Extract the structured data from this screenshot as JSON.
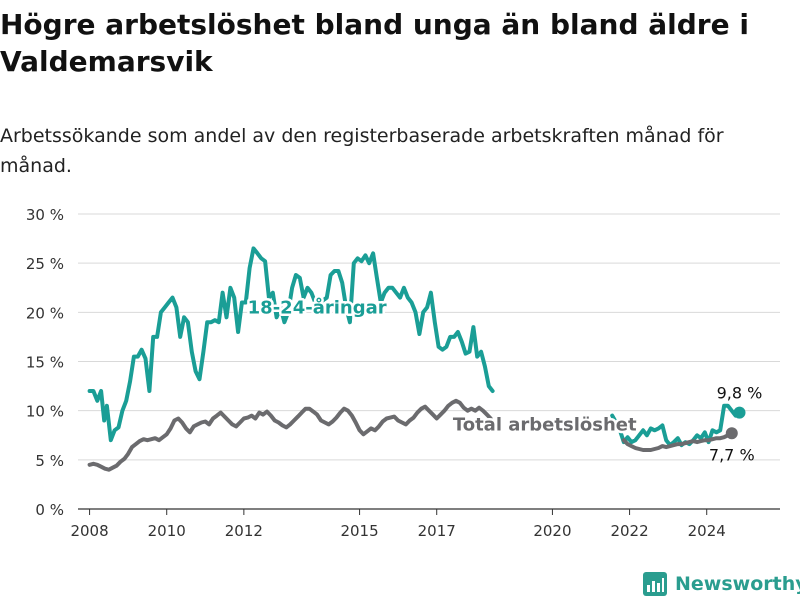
{
  "chart_data": {
    "type": "line",
    "title": "Högre arbetslöshet bland unga än bland äldre i Valdemarsvik",
    "subtitle": "Arbetssökande som andel av den registerbaserade arbetskraften månad för månad.",
    "xlabel": "",
    "ylabel": "",
    "x_ticks": [
      "2008",
      "2010",
      "2012",
      "2015",
      "2017",
      "2020",
      "2022",
      "2024"
    ],
    "x_tick_values": [
      2008,
      2010,
      2012,
      2015,
      2017,
      2020,
      2022,
      2024
    ],
    "y_ticks": [
      "0 %",
      "5 %",
      "10 %",
      "15 %",
      "20 %",
      "25 %",
      "30 %"
    ],
    "y_tick_values": [
      0,
      5,
      10,
      15,
      20,
      25,
      30
    ],
    "ylim": [
      0,
      30
    ],
    "xlim": [
      2007.7,
      2025.9
    ],
    "grid": "horizontal",
    "legend": "inline labels",
    "series": [
      {
        "name": "18-24-åringar",
        "color": "#1a9e96",
        "gap": [
          2018.45,
          2021.55
        ],
        "points": [
          [
            2008.0,
            12.0
          ],
          [
            2008.1,
            12.0
          ],
          [
            2008.2,
            11.0
          ],
          [
            2008.3,
            12.0
          ],
          [
            2008.38,
            9.0
          ],
          [
            2008.45,
            10.5
          ],
          [
            2008.55,
            7.0
          ],
          [
            2008.65,
            8.0
          ],
          [
            2008.75,
            8.3
          ],
          [
            2008.85,
            10.0
          ],
          [
            2008.95,
            11.0
          ],
          [
            2009.05,
            13.0
          ],
          [
            2009.15,
            15.5
          ],
          [
            2009.25,
            15.5
          ],
          [
            2009.35,
            16.2
          ],
          [
            2009.45,
            15.3
          ],
          [
            2009.55,
            12.0
          ],
          [
            2009.65,
            17.5
          ],
          [
            2009.75,
            17.5
          ],
          [
            2009.85,
            20.0
          ],
          [
            2009.95,
            20.5
          ],
          [
            2010.05,
            21.0
          ],
          [
            2010.15,
            21.5
          ],
          [
            2010.25,
            20.5
          ],
          [
            2010.35,
            17.5
          ],
          [
            2010.45,
            19.5
          ],
          [
            2010.55,
            19.0
          ],
          [
            2010.65,
            16.0
          ],
          [
            2010.75,
            14.0
          ],
          [
            2010.85,
            13.2
          ],
          [
            2010.95,
            16.0
          ],
          [
            2011.05,
            19.0
          ],
          [
            2011.15,
            19.0
          ],
          [
            2011.25,
            19.2
          ],
          [
            2011.35,
            19.0
          ],
          [
            2011.45,
            22.0
          ],
          [
            2011.55,
            19.5
          ],
          [
            2011.65,
            22.5
          ],
          [
            2011.75,
            21.5
          ],
          [
            2011.85,
            18.0
          ],
          [
            2011.95,
            21.0
          ],
          [
            2012.05,
            21.0
          ],
          [
            2012.15,
            24.5
          ],
          [
            2012.25,
            26.5
          ],
          [
            2012.35,
            26.0
          ],
          [
            2012.45,
            25.5
          ],
          [
            2012.55,
            25.2
          ],
          [
            2012.65,
            21.5
          ],
          [
            2012.75,
            22.0
          ],
          [
            2012.85,
            19.5
          ],
          [
            2012.95,
            20.5
          ],
          [
            2013.05,
            19.0
          ],
          [
            2013.15,
            20.0
          ],
          [
            2013.25,
            22.5
          ],
          [
            2013.35,
            23.8
          ],
          [
            2013.45,
            23.5
          ],
          [
            2013.55,
            21.5
          ],
          [
            2013.65,
            22.5
          ],
          [
            2013.75,
            22.0
          ],
          [
            2013.85,
            21.0
          ],
          [
            2013.95,
            21.5
          ],
          [
            2014.05,
            21.2
          ],
          [
            2014.15,
            21.5
          ],
          [
            2014.25,
            23.8
          ],
          [
            2014.35,
            24.2
          ],
          [
            2014.45,
            24.2
          ],
          [
            2014.55,
            23.0
          ],
          [
            2014.65,
            20.5
          ],
          [
            2014.75,
            19.0
          ],
          [
            2014.85,
            25.0
          ],
          [
            2014.95,
            25.5
          ],
          [
            2015.05,
            25.2
          ],
          [
            2015.15,
            25.8
          ],
          [
            2015.25,
            25.0
          ],
          [
            2015.35,
            26.0
          ],
          [
            2015.45,
            23.5
          ],
          [
            2015.55,
            21.0
          ],
          [
            2015.65,
            22.0
          ],
          [
            2015.75,
            22.5
          ],
          [
            2015.85,
            22.5
          ],
          [
            2015.95,
            22.0
          ],
          [
            2016.05,
            21.5
          ],
          [
            2016.15,
            22.5
          ],
          [
            2016.25,
            21.5
          ],
          [
            2016.35,
            21.0
          ],
          [
            2016.45,
            20.0
          ],
          [
            2016.55,
            17.8
          ],
          [
            2016.65,
            20.0
          ],
          [
            2016.75,
            20.5
          ],
          [
            2016.85,
            22.0
          ],
          [
            2016.95,
            19.0
          ],
          [
            2017.05,
            16.5
          ],
          [
            2017.15,
            16.2
          ],
          [
            2017.25,
            16.5
          ],
          [
            2017.35,
            17.5
          ],
          [
            2017.45,
            17.5
          ],
          [
            2017.55,
            18.0
          ],
          [
            2017.65,
            17.0
          ],
          [
            2017.75,
            15.8
          ],
          [
            2017.85,
            16.0
          ],
          [
            2017.95,
            18.5
          ],
          [
            2018.05,
            15.5
          ],
          [
            2018.15,
            16.0
          ],
          [
            2018.25,
            14.5
          ],
          [
            2018.35,
            12.5
          ],
          [
            2018.45,
            12.0
          ],
          [
            2021.55,
            9.5
          ],
          [
            2021.65,
            8.8
          ],
          [
            2021.75,
            8.0
          ],
          [
            2021.85,
            6.8
          ],
          [
            2021.95,
            7.3
          ],
          [
            2022.05,
            6.8
          ],
          [
            2022.15,
            7.0
          ],
          [
            2022.25,
            7.5
          ],
          [
            2022.35,
            8.0
          ],
          [
            2022.45,
            7.5
          ],
          [
            2022.55,
            8.2
          ],
          [
            2022.65,
            8.0
          ],
          [
            2022.75,
            8.2
          ],
          [
            2022.85,
            8.5
          ],
          [
            2022.95,
            7.0
          ],
          [
            2023.05,
            6.5
          ],
          [
            2023.15,
            6.8
          ],
          [
            2023.25,
            7.2
          ],
          [
            2023.35,
            6.5
          ],
          [
            2023.45,
            6.8
          ],
          [
            2023.55,
            6.6
          ],
          [
            2023.65,
            7.0
          ],
          [
            2023.75,
            7.5
          ],
          [
            2023.85,
            7.2
          ],
          [
            2023.95,
            7.8
          ],
          [
            2024.05,
            6.8
          ],
          [
            2024.15,
            8.0
          ],
          [
            2024.25,
            7.8
          ],
          [
            2024.35,
            8.0
          ],
          [
            2024.45,
            10.5
          ],
          [
            2024.55,
            10.5
          ],
          [
            2024.65,
            10.0
          ],
          [
            2024.75,
            9.5
          ],
          [
            2024.85,
            9.8
          ]
        ]
      },
      {
        "name": "Total arbetslöshet",
        "color": "#6b6b6e",
        "gap": [
          2018.4,
          2021.85
        ],
        "points": [
          [
            2008.0,
            4.5
          ],
          [
            2008.1,
            4.6
          ],
          [
            2008.2,
            4.5
          ],
          [
            2008.3,
            4.3
          ],
          [
            2008.4,
            4.1
          ],
          [
            2008.5,
            4.0
          ],
          [
            2008.6,
            4.2
          ],
          [
            2008.7,
            4.4
          ],
          [
            2008.8,
            4.8
          ],
          [
            2008.9,
            5.1
          ],
          [
            2009.0,
            5.6
          ],
          [
            2009.1,
            6.3
          ],
          [
            2009.2,
            6.6
          ],
          [
            2009.3,
            6.9
          ],
          [
            2009.4,
            7.1
          ],
          [
            2009.5,
            7.0
          ],
          [
            2009.6,
            7.1
          ],
          [
            2009.7,
            7.2
          ],
          [
            2009.8,
            7.0
          ],
          [
            2009.9,
            7.3
          ],
          [
            2010.0,
            7.6
          ],
          [
            2010.1,
            8.2
          ],
          [
            2010.2,
            9.0
          ],
          [
            2010.3,
            9.2
          ],
          [
            2010.4,
            8.8
          ],
          [
            2010.5,
            8.2
          ],
          [
            2010.6,
            7.8
          ],
          [
            2010.7,
            8.4
          ],
          [
            2010.8,
            8.6
          ],
          [
            2010.9,
            8.8
          ],
          [
            2011.0,
            8.9
          ],
          [
            2011.1,
            8.6
          ],
          [
            2011.2,
            9.2
          ],
          [
            2011.3,
            9.5
          ],
          [
            2011.4,
            9.8
          ],
          [
            2011.5,
            9.4
          ],
          [
            2011.6,
            9.0
          ],
          [
            2011.7,
            8.6
          ],
          [
            2011.8,
            8.4
          ],
          [
            2011.9,
            8.8
          ],
          [
            2012.0,
            9.2
          ],
          [
            2012.1,
            9.3
          ],
          [
            2012.2,
            9.5
          ],
          [
            2012.3,
            9.2
          ],
          [
            2012.4,
            9.8
          ],
          [
            2012.5,
            9.6
          ],
          [
            2012.6,
            9.9
          ],
          [
            2012.7,
            9.5
          ],
          [
            2012.8,
            9.0
          ],
          [
            2012.9,
            8.8
          ],
          [
            2013.0,
            8.5
          ],
          [
            2013.1,
            8.3
          ],
          [
            2013.2,
            8.6
          ],
          [
            2013.3,
            9.0
          ],
          [
            2013.4,
            9.4
          ],
          [
            2013.5,
            9.8
          ],
          [
            2013.6,
            10.2
          ],
          [
            2013.7,
            10.2
          ],
          [
            2013.8,
            9.9
          ],
          [
            2013.9,
            9.6
          ],
          [
            2014.0,
            9.0
          ],
          [
            2014.1,
            8.8
          ],
          [
            2014.2,
            8.6
          ],
          [
            2014.3,
            8.9
          ],
          [
            2014.4,
            9.3
          ],
          [
            2014.5,
            9.8
          ],
          [
            2014.6,
            10.2
          ],
          [
            2014.7,
            10.0
          ],
          [
            2014.8,
            9.5
          ],
          [
            2014.9,
            8.8
          ],
          [
            2015.0,
            8.0
          ],
          [
            2015.1,
            7.6
          ],
          [
            2015.2,
            7.9
          ],
          [
            2015.3,
            8.2
          ],
          [
            2015.4,
            8.0
          ],
          [
            2015.5,
            8.4
          ],
          [
            2015.6,
            8.9
          ],
          [
            2015.7,
            9.2
          ],
          [
            2015.8,
            9.3
          ],
          [
            2015.9,
            9.4
          ],
          [
            2016.0,
            9.0
          ],
          [
            2016.1,
            8.8
          ],
          [
            2016.2,
            8.6
          ],
          [
            2016.3,
            9.0
          ],
          [
            2016.4,
            9.3
          ],
          [
            2016.5,
            9.8
          ],
          [
            2016.6,
            10.2
          ],
          [
            2016.7,
            10.4
          ],
          [
            2016.8,
            10.0
          ],
          [
            2016.9,
            9.6
          ],
          [
            2017.0,
            9.2
          ],
          [
            2017.1,
            9.6
          ],
          [
            2017.2,
            10.0
          ],
          [
            2017.3,
            10.5
          ],
          [
            2017.4,
            10.8
          ],
          [
            2017.5,
            11.0
          ],
          [
            2017.6,
            10.8
          ],
          [
            2017.7,
            10.3
          ],
          [
            2017.8,
            10.0
          ],
          [
            2017.9,
            10.2
          ],
          [
            2018.0,
            10.0
          ],
          [
            2018.1,
            10.3
          ],
          [
            2018.2,
            10.0
          ],
          [
            2018.3,
            9.6
          ],
          [
            2018.4,
            9.2
          ],
          [
            2021.85,
            7.0
          ],
          [
            2021.95,
            6.6
          ],
          [
            2022.05,
            6.4
          ],
          [
            2022.15,
            6.2
          ],
          [
            2022.25,
            6.1
          ],
          [
            2022.35,
            6.0
          ],
          [
            2022.45,
            6.0
          ],
          [
            2022.55,
            6.0
          ],
          [
            2022.65,
            6.1
          ],
          [
            2022.75,
            6.2
          ],
          [
            2022.85,
            6.4
          ],
          [
            2022.95,
            6.3
          ],
          [
            2023.05,
            6.4
          ],
          [
            2023.15,
            6.5
          ],
          [
            2023.25,
            6.6
          ],
          [
            2023.35,
            6.6
          ],
          [
            2023.45,
            6.7
          ],
          [
            2023.55,
            6.8
          ],
          [
            2023.65,
            6.9
          ],
          [
            2023.75,
            6.8
          ],
          [
            2023.85,
            6.9
          ],
          [
            2023.95,
            7.0
          ],
          [
            2024.05,
            7.0
          ],
          [
            2024.15,
            7.1
          ],
          [
            2024.25,
            7.2
          ],
          [
            2024.35,
            7.2
          ],
          [
            2024.45,
            7.3
          ],
          [
            2024.55,
            7.5
          ],
          [
            2024.65,
            7.7
          ]
        ]
      }
    ],
    "annotations": [
      {
        "series": 0,
        "text": "18-24-åringar",
        "x": 2013.9,
        "y": 20.5,
        "color": "#1a9e96"
      },
      {
        "series": 1,
        "text": "Total arbetslöshet",
        "x": 2019.8,
        "y": 8.6,
        "color": "#6b6b6e"
      },
      {
        "series": 0,
        "text": "9,8 %",
        "x": 2024.85,
        "y": 9.8,
        "color": "#111111",
        "place": "above"
      },
      {
        "series": 1,
        "text": "7,7 %",
        "x": 2024.65,
        "y": 7.7,
        "color": "#111111",
        "place": "below"
      }
    ]
  },
  "branding": {
    "logo_text": "Newsworthy",
    "color": "#2a9d8f"
  }
}
